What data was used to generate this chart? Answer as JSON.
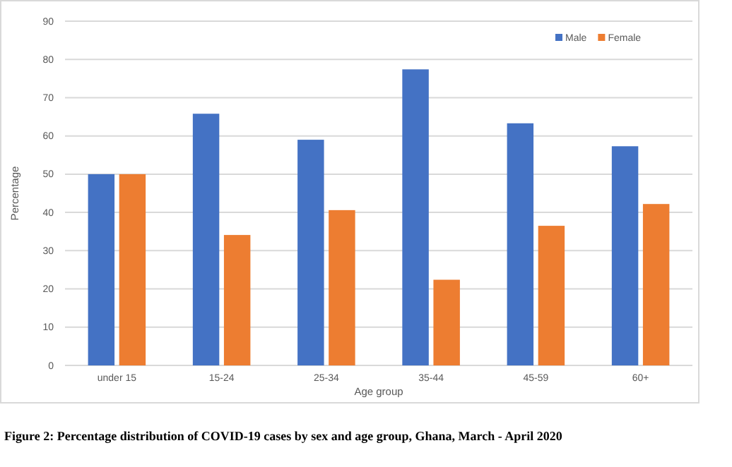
{
  "chart_data": {
    "type": "bar",
    "xlabel": "Age group",
    "ylabel": "Percentage",
    "categories": [
      "under 15",
      "15-24",
      "25-34",
      "35-44",
      "45-59",
      "60+"
    ],
    "series": [
      {
        "name": "Male",
        "color": "#4472c4",
        "values": [
          50,
          65.8,
          59.0,
          77.4,
          63.3,
          57.3
        ]
      },
      {
        "name": "Female",
        "color": "#ed7d31",
        "values": [
          50,
          34.1,
          40.6,
          22.4,
          36.5,
          42.2
        ]
      }
    ],
    "ylim": [
      0,
      90
    ],
    "yticks": [
      0,
      10,
      20,
      30,
      40,
      50,
      60,
      70,
      80,
      90
    ],
    "grid": "y",
    "legend": "top right",
    "annotations": [
      "Figure 2: Percentage distribution of COVID-19 cases by sex and age group, Ghana, March - April 2020"
    ]
  }
}
